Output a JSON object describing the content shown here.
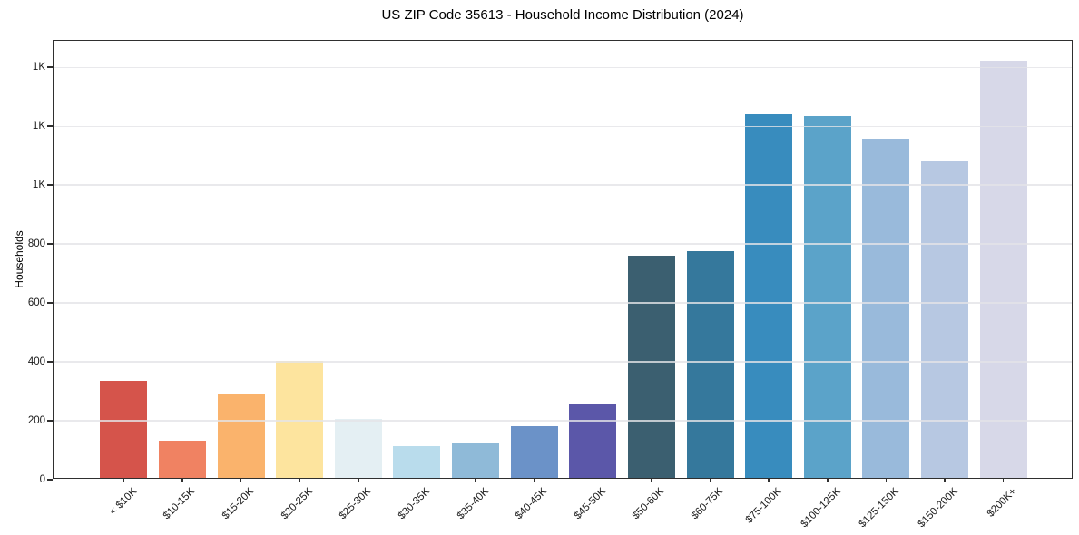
{
  "chart_data": {
    "type": "bar",
    "title": "US ZIP Code 35613 - Household Income Distribution (2024)",
    "xlabel": "",
    "ylabel": "Households",
    "categories": [
      "< $10K",
      "$10-15K",
      "$15-20K",
      "$20-25K",
      "$25-30K",
      "$30-35K",
      "$35-40K",
      "$40-45K",
      "$45-50K",
      "$50-60K",
      "$60-75K",
      "$75-100K",
      "$100-125K",
      "$125-150K",
      "$150-200K",
      "$200K+"
    ],
    "values": [
      330,
      125,
      283,
      396,
      200,
      108,
      117,
      177,
      249,
      754,
      769,
      1235,
      1227,
      1152,
      1075,
      1416
    ],
    "bar_colors": [
      "#d5544b",
      "#f08262",
      "#fab36c",
      "#fde49e",
      "#e4eff3",
      "#b9dcec",
      "#8fbad8",
      "#6b92c8",
      "#5b57a9",
      "#3b5f70",
      "#35789c",
      "#388cbe",
      "#5ba3c9",
      "#99badb",
      "#b7c8e2",
      "#d7d8e8"
    ],
    "ylim": [
      0,
      1490
    ],
    "yticks": [
      {
        "value": 0,
        "label": "0"
      },
      {
        "value": 200,
        "label": "200"
      },
      {
        "value": 400,
        "label": "400"
      },
      {
        "value": 600,
        "label": "600"
      },
      {
        "value": 800,
        "label": "800"
      },
      {
        "value": 1000,
        "label": "1K"
      },
      {
        "value": 1200,
        "label": "1K"
      },
      {
        "value": 1400,
        "label": "1K"
      }
    ],
    "grid": "horizontal",
    "legend": "none",
    "colors": {
      "background": "#ffffff",
      "spine": "#2f2f2f",
      "gridline": "#e7e7e7",
      "text": "#1a1a1a"
    }
  }
}
